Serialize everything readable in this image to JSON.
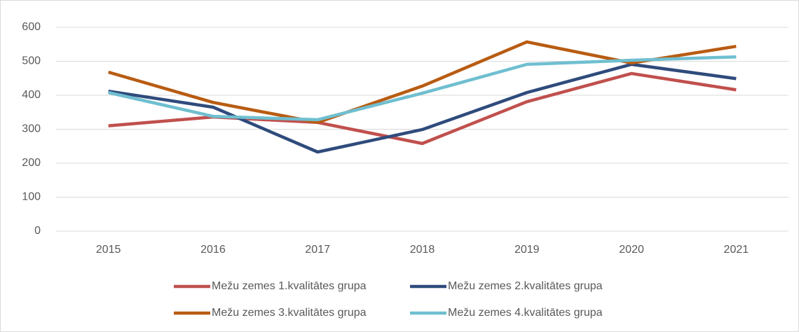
{
  "chart_data": {
    "type": "line",
    "x": [
      "2015",
      "2016",
      "2017",
      "2018",
      "2019",
      "2020",
      "2021"
    ],
    "series": [
      {
        "name": "Mežu zemes 1.kvalitātes grupa",
        "color": "#c0504d",
        "values": [
          310,
          336,
          320,
          258,
          381,
          464,
          416
        ]
      },
      {
        "name": "Mežu zemes 2.kvalitātes grupa",
        "color": "#2f4b7c",
        "values": [
          412,
          365,
          233,
          299,
          408,
          491,
          449
        ]
      },
      {
        "name": "Mežu zemes 3.kvalitātes grupa",
        "color": "#b85c12",
        "values": [
          468,
          379,
          320,
          427,
          557,
          495,
          544
        ]
      },
      {
        "name": "Mežu zemes 4.kvalitātes grupa",
        "color": "#6fbfd0",
        "values": [
          408,
          338,
          328,
          406,
          491,
          503,
          513
        ]
      }
    ],
    "ylim": [
      0,
      600
    ],
    "yticks": [
      0,
      100,
      200,
      300,
      400,
      500,
      600
    ],
    "grid": true
  }
}
